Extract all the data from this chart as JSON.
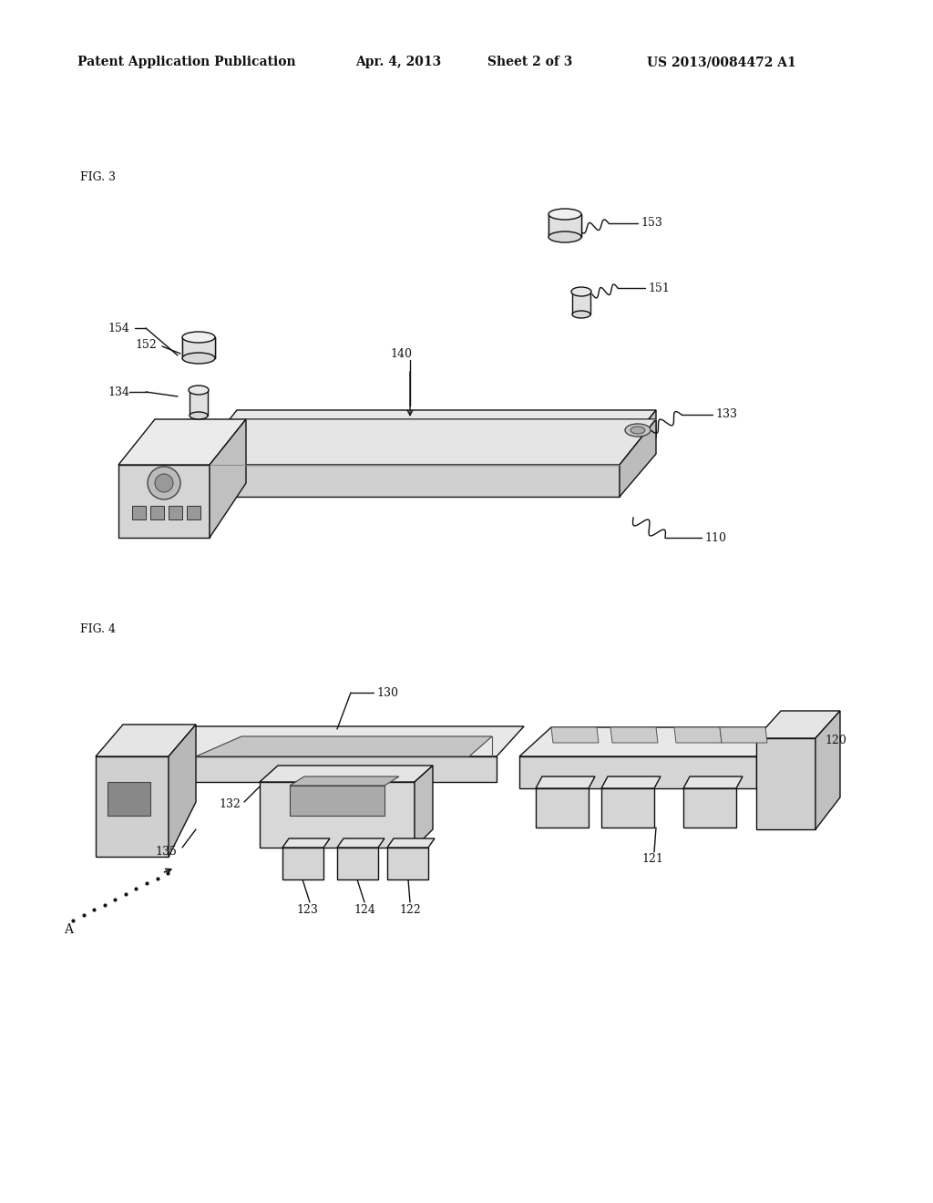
{
  "background_color": "#ffffff",
  "header_text": "Patent Application Publication",
  "header_date": "Apr. 4, 2013",
  "header_sheet": "Sheet 2 of 3",
  "header_patent": "US 2013/0084472 A1",
  "fig3_label": "FIG. 3",
  "fig4_label": "FIG. 4",
  "line_color": "#111111",
  "face_light": "#f5f5f5",
  "face_mid": "#e0e0e0",
  "face_dark": "#c8c8c8",
  "face_darker": "#b0b0b0",
  "label_fontsize": 9,
  "fig_label_fontsize": 9,
  "header_fontsize": 10
}
